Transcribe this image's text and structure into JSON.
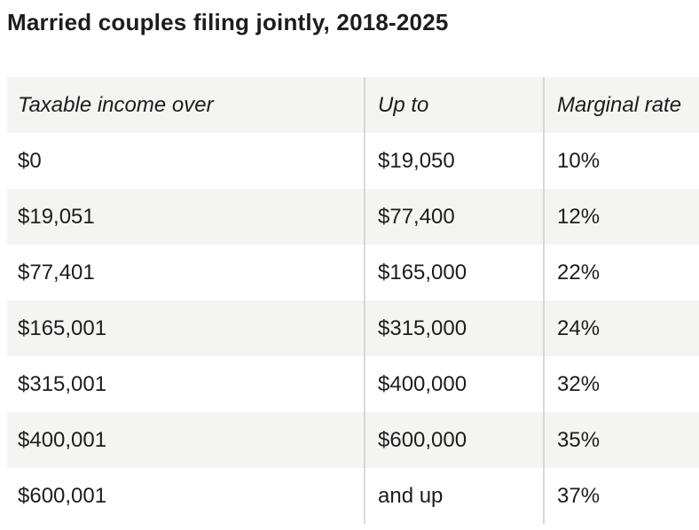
{
  "chart_data": {
    "type": "table",
    "title": "Married couples filing jointly, 2018-2025",
    "columns": [
      "Taxable income over",
      "Up to",
      "Marginal rate"
    ],
    "rows": [
      [
        "$0",
        "$19,050",
        "10%"
      ],
      [
        "$19,051",
        "$77,400",
        "12%"
      ],
      [
        "$77,401",
        "$165,000",
        "22%"
      ],
      [
        "$165,001",
        "$315,000",
        "24%"
      ],
      [
        "$315,001",
        "$400,000",
        "32%"
      ],
      [
        "$400,001",
        "$600,000",
        "35%"
      ],
      [
        "$600,001",
        "and up",
        "37%"
      ]
    ]
  },
  "colors": {
    "page_bg": "#ffffff",
    "header_bg": "#f4f4f3",
    "alt_row_bg": "#f4f4f3",
    "divider": "#d8d8d8",
    "text": "#1d1d1d"
  }
}
